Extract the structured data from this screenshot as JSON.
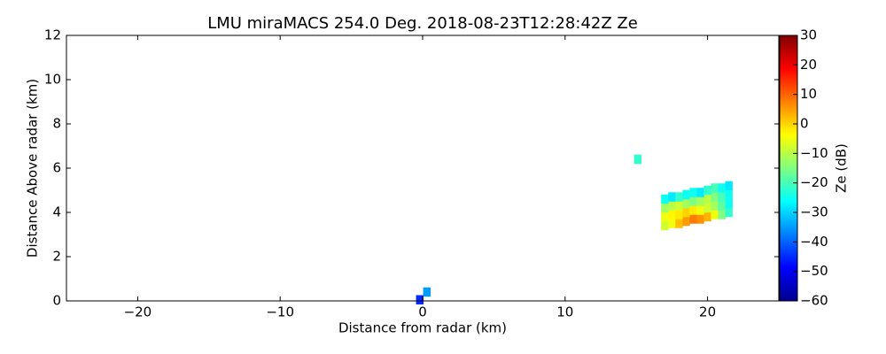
{
  "chart_data": {
    "type": "heatmap",
    "title": "LMU miraMACS 254.0 Deg. 2018-08-23T12:28:42Z  Ze",
    "x_label": "Distance from radar (km)",
    "y_label": "Distance Above radar  (km)",
    "xlim": [
      -25,
      25
    ],
    "xticks": [
      {
        "value": -20,
        "label": "−20"
      },
      {
        "value": -10,
        "label": "−10"
      },
      0,
      10,
      20
    ],
    "ylim": [
      0,
      12
    ],
    "yticks": [
      0,
      2,
      4,
      6,
      8,
      10,
      12
    ],
    "colormap": "jet",
    "colorbar": {
      "label": "Ze (dB)",
      "lim": [
        -60,
        30
      ],
      "ticks": [
        30,
        20,
        10,
        0,
        {
          "value": -10,
          "label": "−10"
        },
        {
          "value": -20,
          "label": "−20"
        },
        {
          "value": -30,
          "label": "−30"
        },
        {
          "value": -40,
          "label": "−40"
        },
        {
          "value": -50,
          "label": "−50"
        },
        {
          "value": -60,
          "label": "−60"
        }
      ]
    },
    "x": [
      17.0,
      17.5,
      18.0,
      18.5,
      19.0,
      19.5,
      20.0,
      20.5,
      21.0,
      21.5,
      17.0,
      17.5,
      18.0,
      18.5,
      19.0,
      19.5,
      20.0,
      20.5,
      21.0,
      21.5,
      17.0,
      17.5,
      18.0,
      18.5,
      19.0,
      19.5,
      20.0,
      20.5,
      21.0,
      21.5,
      17.0,
      17.5,
      18.0,
      18.5,
      19.0,
      19.5,
      20.0,
      20.5,
      21.0,
      21.5,
      15.1,
      0.3,
      -0.2
    ],
    "y": [
      3.4,
      3.5,
      3.5,
      3.6,
      3.7,
      3.7,
      3.8,
      3.9,
      3.9,
      4.0,
      3.8,
      3.9,
      3.9,
      4.0,
      4.1,
      4.1,
      4.2,
      4.3,
      4.3,
      4.4,
      4.2,
      4.3,
      4.3,
      4.4,
      4.5,
      4.5,
      4.6,
      4.7,
      4.7,
      4.8,
      4.6,
      4.7,
      4.7,
      4.8,
      4.9,
      4.9,
      5.0,
      5.1,
      5.1,
      5.2,
      6.4,
      0.4,
      0.05
    ],
    "values": [
      -8,
      -5,
      2,
      5,
      8,
      6,
      3,
      -5,
      -15,
      -22,
      -5,
      -3,
      -2,
      0,
      -2,
      -5,
      -8,
      -12,
      -18,
      -25,
      -12,
      -10,
      -8,
      -12,
      -15,
      -12,
      -10,
      -15,
      -20,
      -25,
      -25,
      -28,
      -22,
      -25,
      -25,
      -28,
      -22,
      -20,
      -25,
      -28,
      -22,
      -35,
      -45
    ]
  }
}
